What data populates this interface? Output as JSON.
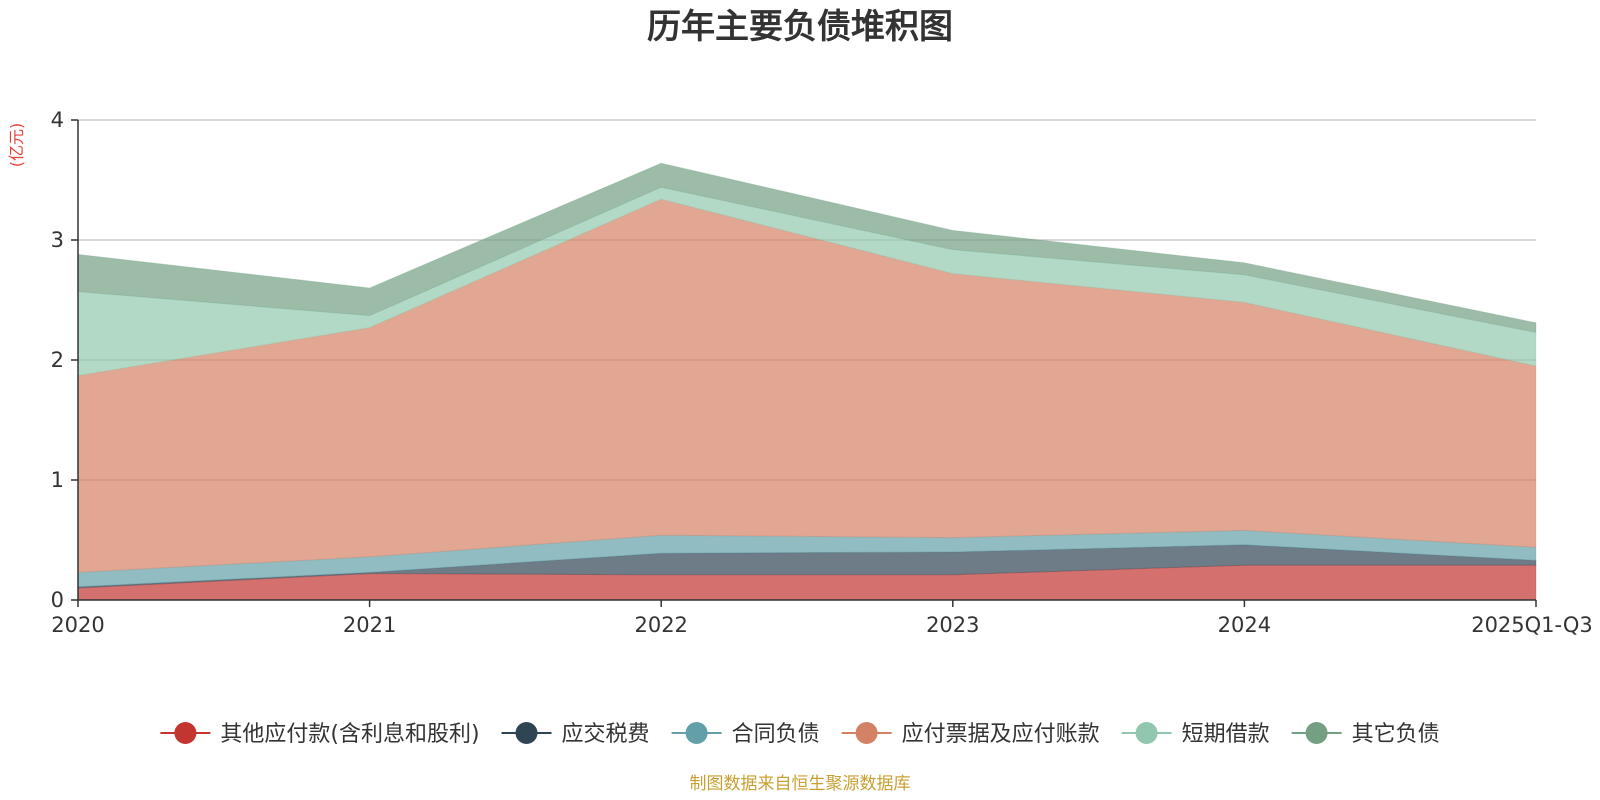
{
  "chart_data": {
    "type": "area",
    "stacked": true,
    "title": "历年主要负债堆积图",
    "ylabel": "(亿元)",
    "ylim": [
      0,
      4
    ],
    "yticks": [
      0,
      1,
      2,
      3,
      4
    ],
    "grid": true,
    "legend_position": "bottom",
    "categories": [
      "2020",
      "2021",
      "2022",
      "2023",
      "2024",
      "2025Q1-Q3"
    ],
    "series": [
      {
        "name": "其他应付款(含利息和股利)",
        "color": "#c23531",
        "values": [
          0.1,
          0.22,
          0.21,
          0.21,
          0.29,
          0.29
        ]
      },
      {
        "name": "应交税费",
        "color": "#2f4554",
        "values": [
          0.01,
          0.01,
          0.18,
          0.19,
          0.17,
          0.04
        ]
      },
      {
        "name": "合同负债",
        "color": "#61a0a8",
        "values": [
          0.12,
          0.13,
          0.15,
          0.12,
          0.12,
          0.11
        ]
      },
      {
        "name": "应付票据及应付账款",
        "color": "#d48265",
        "values": [
          1.64,
          1.91,
          2.8,
          2.2,
          1.9,
          1.51
        ]
      },
      {
        "name": "短期借款",
        "color": "#91c7ae",
        "values": [
          0.7,
          0.1,
          0.1,
          0.2,
          0.23,
          0.28
        ]
      },
      {
        "name": "其它负债",
        "color": "#749f83",
        "values": [
          0.31,
          0.23,
          0.2,
          0.16,
          0.1,
          0.08
        ]
      }
    ],
    "source": "制图数据来自恒生聚源数据库",
    "source_color": "#c8a032",
    "unit_color": "#e8413a"
  }
}
